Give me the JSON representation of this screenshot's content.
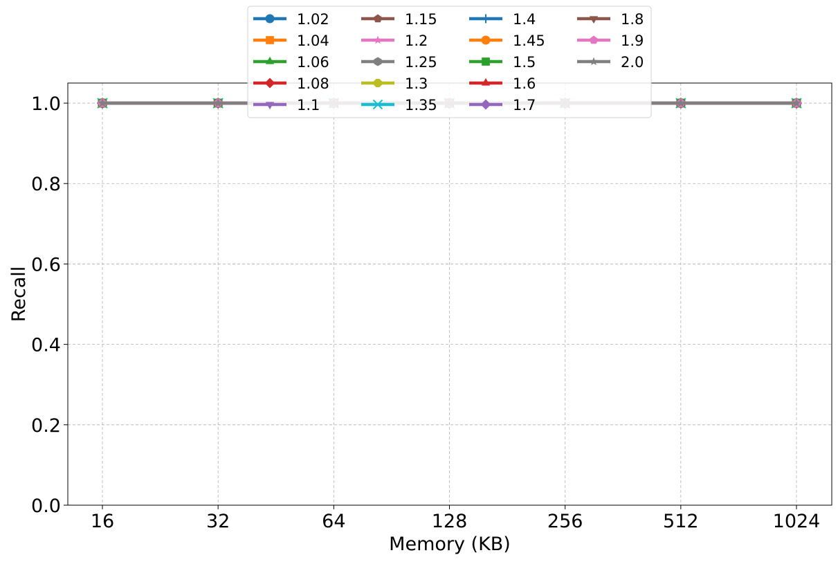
{
  "chart_data": {
    "type": "line",
    "xlabel": "Memory (KB)",
    "ylabel": "Recall",
    "categories": [
      "16",
      "32",
      "64",
      "128",
      "256",
      "512",
      "1024"
    ],
    "ylim": [
      0.0,
      1.05
    ],
    "yticks": [
      "0.0",
      "0.2",
      "0.4",
      "0.6",
      "0.8",
      "1.0"
    ],
    "ytick_values": [
      0.0,
      0.2,
      0.4,
      0.6,
      0.8,
      1.0
    ],
    "grid": true,
    "legend_position": "top-center",
    "series": [
      {
        "name": "1.02",
        "color": "#1f77b4",
        "marker": "circle",
        "values": [
          1.0,
          1.0,
          1.0,
          1.0,
          1.0,
          1.0,
          1.0
        ]
      },
      {
        "name": "1.04",
        "color": "#ff7f0e",
        "marker": "square",
        "values": [
          1.0,
          1.0,
          1.0,
          1.0,
          1.0,
          1.0,
          1.0
        ]
      },
      {
        "name": "1.06",
        "color": "#2ca02c",
        "marker": "triangle-up",
        "values": [
          1.0,
          1.0,
          1.0,
          1.0,
          1.0,
          1.0,
          1.0
        ]
      },
      {
        "name": "1.08",
        "color": "#d62728",
        "marker": "diamond",
        "values": [
          1.0,
          1.0,
          1.0,
          1.0,
          1.0,
          1.0,
          1.0
        ]
      },
      {
        "name": "1.1",
        "color": "#9467bd",
        "marker": "triangle-down",
        "values": [
          1.0,
          1.0,
          1.0,
          1.0,
          1.0,
          1.0,
          1.0
        ]
      },
      {
        "name": "1.15",
        "color": "#8c564b",
        "marker": "pentagon",
        "values": [
          1.0,
          1.0,
          1.0,
          1.0,
          1.0,
          1.0,
          1.0
        ]
      },
      {
        "name": "1.2",
        "color": "#e377c2",
        "marker": "star",
        "values": [
          1.0,
          1.0,
          1.0,
          1.0,
          1.0,
          1.0,
          1.0
        ]
      },
      {
        "name": "1.25",
        "color": "#7f7f7f",
        "marker": "hexagon",
        "values": [
          1.0,
          1.0,
          1.0,
          1.0,
          1.0,
          1.0,
          1.0
        ]
      },
      {
        "name": "1.3",
        "color": "#bcbd22",
        "marker": "octagon",
        "values": [
          1.0,
          1.0,
          1.0,
          1.0,
          1.0,
          1.0,
          1.0
        ]
      },
      {
        "name": "1.35",
        "color": "#17becf",
        "marker": "x",
        "values": [
          1.0,
          1.0,
          1.0,
          1.0,
          1.0,
          1.0,
          1.0
        ]
      },
      {
        "name": "1.4",
        "color": "#1f77b4",
        "marker": "plus",
        "values": [
          1.0,
          1.0,
          1.0,
          1.0,
          1.0,
          1.0,
          1.0
        ]
      },
      {
        "name": "1.45",
        "color": "#ff7f0e",
        "marker": "circle",
        "values": [
          1.0,
          1.0,
          1.0,
          1.0,
          1.0,
          1.0,
          1.0
        ]
      },
      {
        "name": "1.5",
        "color": "#2ca02c",
        "marker": "square",
        "values": [
          1.0,
          1.0,
          1.0,
          1.0,
          1.0,
          1.0,
          1.0
        ]
      },
      {
        "name": "1.6",
        "color": "#d62728",
        "marker": "triangle-up",
        "values": [
          1.0,
          1.0,
          1.0,
          1.0,
          1.0,
          1.0,
          1.0
        ]
      },
      {
        "name": "1.7",
        "color": "#9467bd",
        "marker": "diamond",
        "values": [
          1.0,
          1.0,
          1.0,
          1.0,
          1.0,
          1.0,
          1.0
        ]
      },
      {
        "name": "1.8",
        "color": "#8c564b",
        "marker": "triangle-down",
        "values": [
          1.0,
          1.0,
          1.0,
          1.0,
          1.0,
          1.0,
          1.0
        ]
      },
      {
        "name": "1.9",
        "color": "#e377c2",
        "marker": "pentagon",
        "values": [
          1.0,
          1.0,
          1.0,
          1.0,
          1.0,
          1.0,
          1.0
        ]
      },
      {
        "name": "2.0",
        "color": "#7f7f7f",
        "marker": "star",
        "values": [
          1.0,
          1.0,
          1.0,
          1.0,
          1.0,
          1.0,
          1.0
        ]
      }
    ]
  }
}
